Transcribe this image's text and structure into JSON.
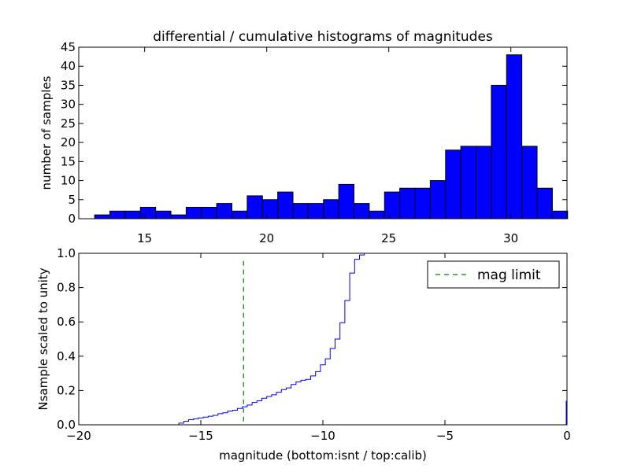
{
  "chart_data": [
    {
      "type": "bar",
      "panel": "top",
      "title": "differential / cumulative histograms of magnitudes",
      "xlabel": "",
      "ylabel": "number of samples",
      "xlim": [
        12.3,
        32.3
      ],
      "ylim": [
        0,
        45
      ],
      "xticks": [
        15,
        20,
        25,
        30
      ],
      "yticks": [
        0,
        5,
        10,
        15,
        20,
        25,
        30,
        35,
        40,
        45
      ],
      "bin_start": 12.95,
      "bin_width": 0.625,
      "values": [
        1,
        2,
        2,
        3,
        2,
        1,
        3,
        3,
        4,
        2,
        6,
        5,
        7,
        4,
        4,
        5,
        9,
        4,
        2,
        7,
        8,
        8,
        10,
        18,
        19,
        19,
        35,
        43,
        19,
        8,
        2
      ],
      "bar_color": "#0000ff",
      "edge_color": "#000000",
      "grid": false
    },
    {
      "type": "line",
      "panel": "bottom",
      "xlabel": "magnitude (bottom:isnt / top:calib)",
      "ylabel": "Nsample scaled to unity",
      "xlim": [
        -20,
        0
      ],
      "ylim": [
        0,
        1
      ],
      "xticks": [
        -20,
        -15,
        -10,
        -5,
        0
      ],
      "yticks": [
        0.0,
        0.2,
        0.4,
        0.6,
        0.8,
        1.0
      ],
      "series": [
        {
          "style": "step",
          "color": "#0000ff",
          "x": [
            -20,
            -15.9,
            -15.7,
            -15.5,
            -15.3,
            -15.1,
            -14.9,
            -14.7,
            -14.5,
            -14.3,
            -14.1,
            -13.9,
            -13.7,
            -13.5,
            -13.3,
            -13.1,
            -12.9,
            -12.7,
            -12.5,
            -12.3,
            -12.1,
            -11.9,
            -11.7,
            -11.5,
            -11.3,
            -11.1,
            -10.9,
            -10.7,
            -10.5,
            -10.3,
            -10.1,
            -9.9,
            -9.7,
            -9.5,
            -9.3,
            -9.1,
            -8.9,
            -8.7,
            -8.5,
            -8.3,
            -8.0
          ],
          "y": [
            0.0,
            0.01,
            0.02,
            0.03,
            0.035,
            0.04,
            0.045,
            0.05,
            0.055,
            0.065,
            0.07,
            0.08,
            0.085,
            0.095,
            0.105,
            0.115,
            0.13,
            0.14,
            0.155,
            0.165,
            0.175,
            0.19,
            0.205,
            0.215,
            0.235,
            0.25,
            0.26,
            0.265,
            0.285,
            0.31,
            0.35,
            0.385,
            0.445,
            0.5,
            0.595,
            0.725,
            0.885,
            0.965,
            0.99,
            1.0,
            1.0
          ]
        }
      ],
      "reference_line": {
        "name": "mag limit",
        "x": -13.25,
        "color": "#008000",
        "style": "dashed"
      },
      "legend": {
        "entries": [
          "mag limit"
        ],
        "loc": "upper right"
      },
      "grid": false
    }
  ]
}
